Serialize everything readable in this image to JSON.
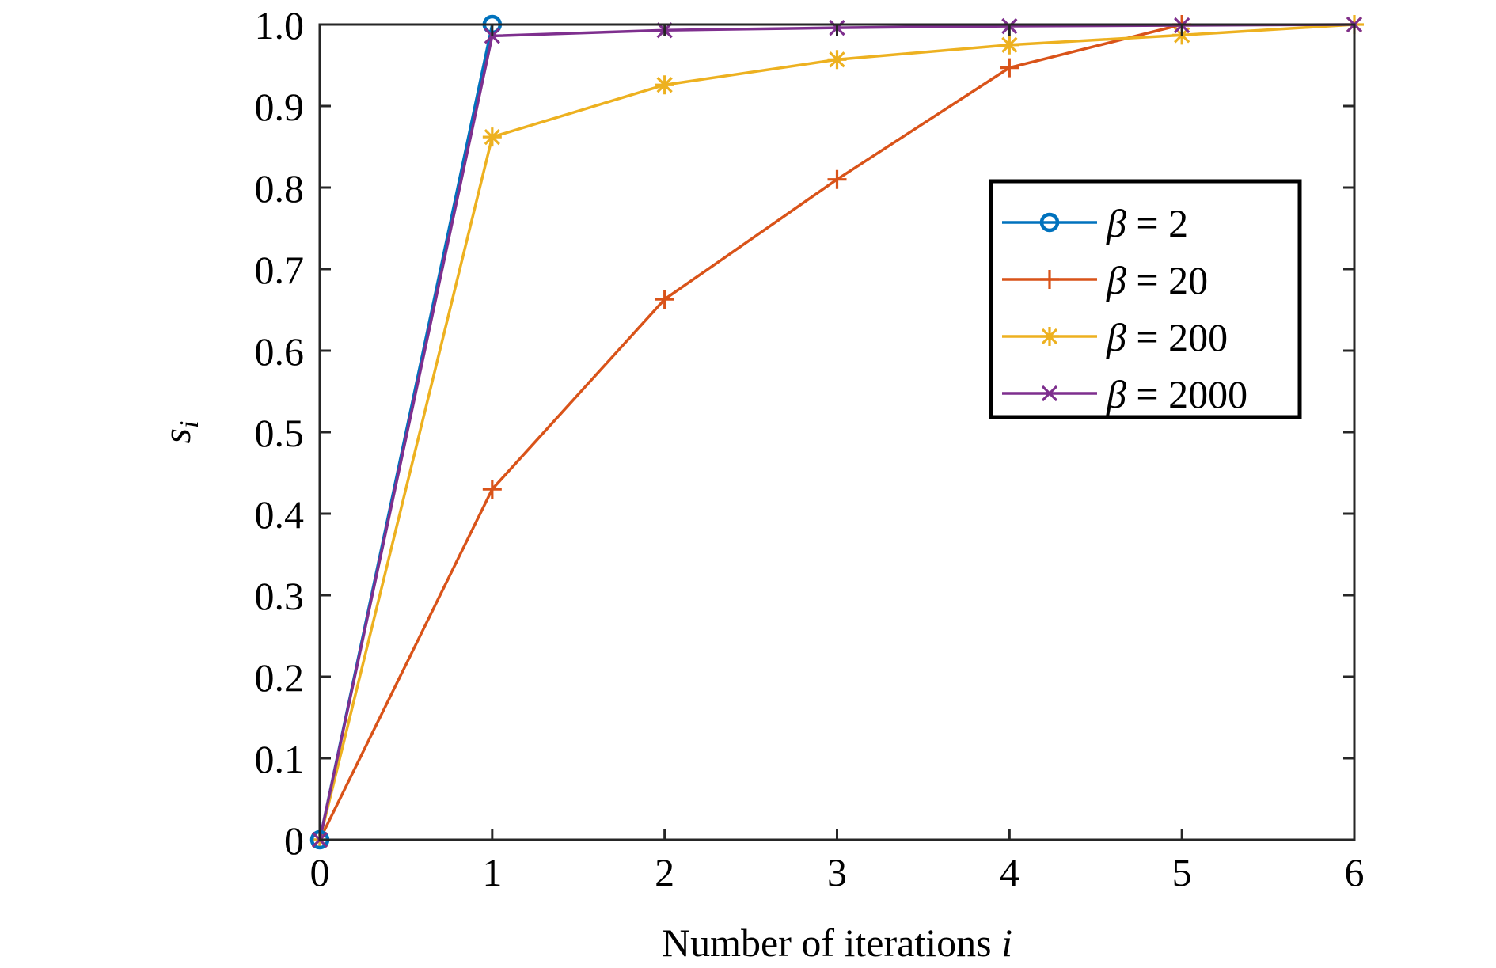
{
  "chart_data": {
    "type": "line",
    "title": "",
    "xlabel": "Number of iterations",
    "xlabel_var": "i",
    "ylabel_main": "s",
    "ylabel_sub": "i",
    "xlim": [
      0,
      6
    ],
    "ylim": [
      0,
      1.0
    ],
    "x": [
      0,
      1,
      2,
      3,
      4,
      5,
      6
    ],
    "xticks": [
      "0",
      "1",
      "2",
      "3",
      "4",
      "5",
      "6"
    ],
    "yticks": [
      {
        "value": 0.0,
        "label": "0"
      },
      {
        "value": 0.1,
        "label": "0.1"
      },
      {
        "value": 0.2,
        "label": "0.2"
      },
      {
        "value": 0.3,
        "label": "0.3"
      },
      {
        "value": 0.4,
        "label": "0.4"
      },
      {
        "value": 0.5,
        "label": "0.5"
      },
      {
        "value": 0.6,
        "label": "0.6"
      },
      {
        "value": 0.7,
        "label": "0.7"
      },
      {
        "value": 0.8,
        "label": "0.8"
      },
      {
        "value": 0.9,
        "label": "0.9"
      },
      {
        "value": 1.0,
        "label": "1.0"
      }
    ],
    "grid": false,
    "legend_position": "top-right",
    "series": [
      {
        "name_symbol": "β",
        "name_rest": " = 2",
        "color": "#0072BD",
        "marker": "circle",
        "x": [
          0,
          1
        ],
        "values": [
          0,
          1.0
        ]
      },
      {
        "name_symbol": "β",
        "name_rest": " = 20",
        "color": "#D95319",
        "marker": "plus",
        "x": [
          0,
          1,
          2,
          3,
          4,
          5
        ],
        "values": [
          0,
          0.43,
          0.663,
          0.81,
          0.947,
          1.0
        ]
      },
      {
        "name_symbol": "β",
        "name_rest": " = 200",
        "color": "#EDB120",
        "marker": "star",
        "x": [
          0,
          1,
          2,
          3,
          4,
          5,
          6
        ],
        "values": [
          0,
          0.862,
          0.926,
          0.957,
          0.975,
          0.987,
          1.0
        ]
      },
      {
        "name_symbol": "β",
        "name_rest": " = 2000",
        "color": "#7E2F8E",
        "marker": "x",
        "x": [
          0,
          1,
          2,
          3,
          4,
          5,
          6
        ],
        "values": [
          0,
          0.986,
          0.993,
          0.996,
          0.998,
          0.999,
          1.0
        ]
      }
    ]
  }
}
